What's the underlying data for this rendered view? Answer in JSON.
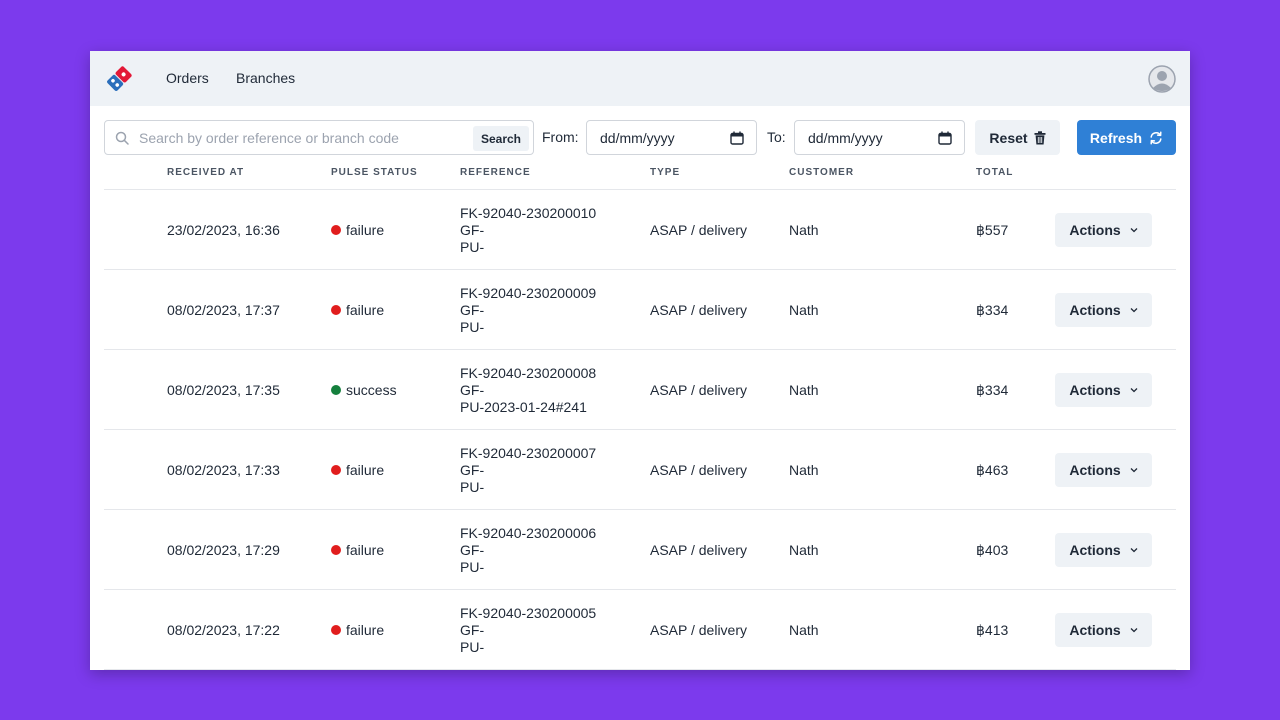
{
  "nav": {
    "items": [
      "Orders",
      "Branches"
    ]
  },
  "toolbar": {
    "search_placeholder": "Search by order reference or branch code",
    "search_button": "Search",
    "from_label": "From:",
    "from_value": "dd/mm/yyyy",
    "to_label": "To:",
    "to_value": "dd/mm/yyyy",
    "reset_label": "Reset",
    "refresh_label": "Refresh"
  },
  "table": {
    "headers": [
      "RECEIVED AT",
      "PULSE STATUS",
      "REFERENCE",
      "TYPE",
      "CUSTOMER",
      "TOTAL"
    ],
    "status_colors": {
      "failure": "#e11d1d",
      "success": "#15803d"
    },
    "rows": [
      {
        "received_at": "23/02/2023, 16:36",
        "status": "failure",
        "ref1": "FK-92040-230200010",
        "ref2": "GF-",
        "ref3": "PU-",
        "type": "ASAP / delivery",
        "customer": "Nath",
        "total": "฿557",
        "action": "Actions"
      },
      {
        "received_at": "08/02/2023, 17:37",
        "status": "failure",
        "ref1": "FK-92040-230200009",
        "ref2": "GF-",
        "ref3": "PU-",
        "type": "ASAP / delivery",
        "customer": "Nath",
        "total": "฿334",
        "action": "Actions"
      },
      {
        "received_at": "08/02/2023, 17:35",
        "status": "success",
        "ref1": "FK-92040-230200008",
        "ref2": "GF-",
        "ref3": "PU-2023-01-24#241",
        "type": "ASAP / delivery",
        "customer": "Nath",
        "total": "฿334",
        "action": "Actions"
      },
      {
        "received_at": "08/02/2023, 17:33",
        "status": "failure",
        "ref1": "FK-92040-230200007",
        "ref2": "GF-",
        "ref3": "PU-",
        "type": "ASAP / delivery",
        "customer": "Nath",
        "total": "฿463",
        "action": "Actions"
      },
      {
        "received_at": "08/02/2023, 17:29",
        "status": "failure",
        "ref1": "FK-92040-230200006",
        "ref2": "GF-",
        "ref3": "PU-",
        "type": "ASAP / delivery",
        "customer": "Nath",
        "total": "฿403",
        "action": "Actions"
      },
      {
        "received_at": "08/02/2023, 17:22",
        "status": "failure",
        "ref1": "FK-92040-230200005",
        "ref2": "GF-",
        "ref3": "PU-",
        "type": "ASAP / delivery",
        "customer": "Nath",
        "total": "฿413",
        "action": "Actions"
      }
    ]
  }
}
